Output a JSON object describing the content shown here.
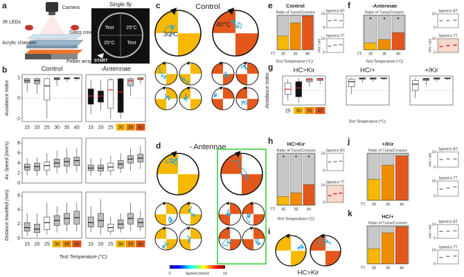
{
  "panel_a": {
    "letter": "a",
    "title": "Single fly",
    "parts": [
      "Camera",
      "IR LEDs",
      "Glass cover",
      "Acrylic chamber",
      "Peltier array"
    ],
    "arena": [
      "Test",
      "25°C",
      "25°C",
      "Test",
      "START"
    ]
  },
  "panel_b": {
    "letter": "b",
    "xlabel": "Test Temperature (°C)"
  },
  "panel_c": {
    "letter": "c",
    "title": "Control",
    "temps": [
      "30°C",
      "40°C"
    ]
  },
  "panel_d": {
    "letter": "d",
    "title": "- Antennae"
  },
  "colorbar": {
    "label": "Speed (mm/s)",
    "ticks": [
      0,
      10
    ]
  },
  "panel_e": {
    "letter": "e",
    "xlabel": "Test Temperature (°C)"
  },
  "panel_f": {
    "letter": "f",
    "xlabel": "Test Temperature (°C)"
  },
  "panel_g": {
    "letter": "g",
    "xlabel": "Test Temperature (°C)"
  },
  "panel_h": {
    "letter": "h",
    "xlabel": "Test Temperature (°C)"
  },
  "panel_i": {
    "letter": "i",
    "label": "HC>Kir"
  },
  "panel_j": {
    "letter": "j"
  },
  "panel_k": {
    "letter": "k"
  },
  "chart_data": [
    {
      "type": "box",
      "title": "Control",
      "ylabel": "Avoidance Index",
      "categories": [
        "15",
        "20",
        "25",
        "30",
        "35",
        "40"
      ],
      "ylim": [
        -1.15,
        1.15
      ],
      "yticks": [
        -1,
        0,
        1
      ],
      "zero_line": true,
      "median": [
        0.85,
        0.85,
        0.6,
        0.95,
        0.97,
        0.98
      ],
      "q1": [
        0.75,
        0.7,
        -0.1,
        0.9,
        0.93,
        0.95
      ],
      "q3": [
        0.95,
        0.95,
        0.95,
        1,
        1,
        1
      ],
      "whislo": [
        0.3,
        0.2,
        -1,
        0.6,
        0.8,
        0.85
      ],
      "whishi": [
        1,
        1,
        1,
        1,
        1,
        1
      ],
      "box_colors": [
        "#bdbdbd",
        "#bdbdbd",
        "#ffffff",
        "#bdbdbd",
        "#bdbdbd",
        "#bdbdbd"
      ],
      "median_color": "#222222"
    },
    {
      "type": "box",
      "title": "-Antennae",
      "categories": [
        "15",
        "20",
        "25",
        "30",
        "35",
        "40"
      ],
      "category_colors": [
        "none",
        "none",
        "none",
        "#f6b800",
        "#f08c00",
        "#e4571b"
      ],
      "ylim": [
        -1.15,
        1.15
      ],
      "zero_line": true,
      "median": [
        0.1,
        0.1,
        0.4,
        0.3,
        0.85,
        0.95
      ],
      "q1": [
        -0.3,
        -0.2,
        -0.5,
        -0.7,
        0.6,
        0.9
      ],
      "q3": [
        0.45,
        0.35,
        0.9,
        0.95,
        0.95,
        1
      ],
      "whislo": [
        -0.8,
        -0.6,
        -1,
        -1,
        0.1,
        0.7
      ],
      "whishi": [
        0.9,
        0.9,
        1,
        1,
        1,
        1
      ],
      "box_colors": [
        "#111111",
        "#111111",
        "#ffffff",
        "#111111",
        "#bdbdbd",
        "#bdbdbd"
      ],
      "median_color": "#e0201b"
    },
    {
      "type": "box",
      "ylabel": "Av. Speed (mm/s)",
      "ylim": [
        0,
        9
      ],
      "yticks": [
        0,
        2,
        4,
        6,
        8
      ],
      "median": [
        3.2,
        3.3,
        3.5,
        4,
        4.3,
        4.5
      ],
      "q1": [
        2.6,
        2.5,
        2.6,
        3.2,
        3.4,
        3.5
      ],
      "q3": [
        3.8,
        4,
        4.2,
        4.8,
        5,
        5.2
      ],
      "whislo": [
        1.5,
        1.4,
        1.5,
        2,
        2,
        2.2
      ],
      "whishi": [
        5,
        5.2,
        6,
        6.5,
        7,
        7
      ],
      "box_colors": [
        "#bdbdbd",
        "#bdbdbd",
        "#ffffff",
        "#bdbdbd",
        "#bdbdbd",
        "#bdbdbd"
      ],
      "median_color": "#222222"
    },
    {
      "type": "box",
      "ylim": [
        0,
        9
      ],
      "median": [
        3,
        3,
        3.2,
        3.8,
        4.8,
        5
      ],
      "q1": [
        2.5,
        2.4,
        2.5,
        3,
        4,
        4.2
      ],
      "q3": [
        3.6,
        3.6,
        4,
        4.5,
        5.5,
        5.8
      ],
      "whislo": [
        1.5,
        1.4,
        1.5,
        2,
        2.5,
        2.8
      ],
      "whishi": [
        5,
        5,
        5.5,
        6,
        7,
        7.5
      ],
      "box_colors": [
        "#bdbdbd",
        "#bdbdbd",
        "#ffffff",
        "#bdbdbd",
        "#bdbdbd",
        "#bdbdbd"
      ],
      "median_color": "#222222"
    },
    {
      "type": "box",
      "ylabel": "Distance travelled (mm)",
      "categories": [
        "15",
        "20",
        "25",
        "30",
        "35",
        "40"
      ],
      "category_colors": [
        "none",
        "none",
        "none",
        "#f6b800",
        "#f08c00",
        "#e4571b"
      ],
      "ylim": [
        0,
        6.5
      ],
      "yticks": [
        0,
        2,
        4,
        6
      ],
      "median": [
        1.5,
        1.3,
        2.2,
        2.5,
        2.8,
        2.9
      ],
      "q1": [
        1,
        0.8,
        1.2,
        1.8,
        2,
        2
      ],
      "q3": [
        2.2,
        2,
        3,
        3.2,
        3.5,
        3.8
      ],
      "whislo": [
        0.3,
        0.2,
        0.5,
        0.8,
        1,
        1
      ],
      "whishi": [
        3.5,
        3.5,
        5,
        4.5,
        5,
        5
      ],
      "box_colors": [
        "#bdbdbd",
        "#bdbdbd",
        "#ffffff",
        "#bdbdbd",
        "#bdbdbd",
        "#bdbdbd"
      ],
      "median_color": "#222222"
    },
    {
      "type": "box",
      "categories": [
        "15",
        "20",
        "25",
        "30",
        "35",
        "40"
      ],
      "category_colors": [
        "none",
        "none",
        "none",
        "#f6b800",
        "#f08c00",
        "#e4571b"
      ],
      "ylim": [
        0,
        6.5
      ],
      "median": [
        2.2,
        2.5,
        1.5,
        2,
        2.8,
        2.2
      ],
      "q1": [
        1.6,
        1.6,
        1,
        1.4,
        2,
        1.6
      ],
      "q3": [
        3,
        3.5,
        2,
        2.6,
        3.5,
        2.8
      ],
      "whislo": [
        0.8,
        0.5,
        0.5,
        0.8,
        1,
        1
      ],
      "whishi": [
        4.5,
        5.5,
        3,
        3.5,
        5,
        4
      ],
      "box_colors": [
        "#bdbdbd",
        "#bdbdbd",
        "#ffffff",
        "#bdbdbd",
        "#bdbdbd",
        "#bdbdbd"
      ],
      "median_color": "#222222"
    },
    {
      "type": "stacked_bar",
      "title": "Control",
      "subtitle": "Ratio of Turns/Crosses",
      "xprefix": "TT:",
      "categories": [
        "30",
        "35",
        "40"
      ],
      "ylim": [
        0,
        1
      ],
      "series": [
        {
          "colors": [
            "#f6b800",
            "#f08c00",
            "#e4571b"
          ],
          "values": [
            0.4,
            0.78,
            0.98
          ]
        },
        {
          "color": "#c8c8c8",
          "values": [
            0.6,
            0.22,
            0.02
          ]
        }
      ]
    },
    {
      "type": "dot",
      "title": "Speed in BT",
      "ylim": [
        0,
        14
      ],
      "yticks": [
        0,
        14
      ],
      "color": "#888888",
      "background": "#ffffff",
      "values": [
        7,
        7.5,
        7.2
      ]
    },
    {
      "type": "dot",
      "title": "Speed in TT",
      "ylabel": "mm / sec",
      "ylim": [
        0,
        14
      ],
      "yticks": [
        0,
        14
      ],
      "color": "#888888",
      "background": "#ffffff",
      "values": [
        6.5,
        7.5,
        8
      ]
    },
    {
      "type": "stacked_bar",
      "title": "-Antennae",
      "subtitle": "Ratio of Turns/Crosses",
      "xprefix": "TT:",
      "categories": [
        "30",
        "35",
        "40"
      ],
      "ylim": [
        0,
        1
      ],
      "significance": [
        "*",
        "*",
        "*"
      ],
      "series": [
        {
          "colors": [
            "#f6b800",
            "#f08c00",
            "#e4571b"
          ],
          "values": [
            0.2,
            0.3,
            0.5
          ]
        },
        {
          "color": "#c8c8c8",
          "values": [
            0.8,
            0.7,
            0.5
          ]
        }
      ]
    },
    {
      "type": "dot",
      "title": "Speed in BT",
      "ylim": [
        0,
        14
      ],
      "yticks": [
        0,
        14
      ],
      "color": "#888888",
      "background": "#ffffff",
      "values": [
        7,
        7.2,
        7.5
      ]
    },
    {
      "type": "dot",
      "title": "Speed in TT",
      "ylabel": "mm / sec",
      "ylim": [
        0,
        14
      ],
      "yticks": [
        0,
        14
      ],
      "color": "#d9302a",
      "background": "#f9d8cc",
      "values": [
        6,
        7,
        7.5
      ]
    },
    {
      "type": "box",
      "title": "HC>Kir",
      "ylabel": "Avoidance Index",
      "categories": [
        "25",
        "30",
        "35",
        "40"
      ],
      "category_colors": [
        "none",
        "#f6b800",
        "#f08c00",
        "#e4571b"
      ],
      "ylim": [
        -1.15,
        1.15
      ],
      "zero_line": true,
      "median": [
        0.1,
        0.2,
        0.85,
        0.9
      ],
      "q1": [
        -0.3,
        -0.5,
        0.7,
        0.8
      ],
      "q3": [
        0.6,
        0.7,
        0.95,
        0.97
      ],
      "whislo": [
        -0.8,
        -1,
        0.3,
        0.5
      ],
      "whishi": [
        0.9,
        1,
        1,
        1
      ],
      "box_colors": [
        "#ffffff",
        "#111111",
        "#bdbdbd",
        "#bdbdbd"
      ],
      "median_color": "#e0201b"
    },
    {
      "type": "box",
      "title": "HC/+",
      "ylim": [
        -1.15,
        1.15
      ],
      "zero_line": true,
      "median": [
        0.7,
        0.95,
        0.95,
        0.97
      ],
      "q1": [
        0.3,
        0.9,
        0.9,
        0.93
      ],
      "q3": [
        0.9,
        1,
        1,
        1
      ],
      "whislo": [
        -0.3,
        0.6,
        0.7,
        0.8
      ],
      "whishi": [
        1,
        1,
        1,
        1
      ],
      "box_colors": [
        "#ffffff",
        "#bdbdbd",
        "#bdbdbd",
        "#bdbdbd"
      ],
      "median_color": "#222222"
    },
    {
      "type": "box",
      "title": "+/Kir",
      "ylim": [
        -1.15,
        1.15
      ],
      "zero_line": true,
      "median": [
        0.5,
        0.9,
        0.95,
        0.97
      ],
      "q1": [
        0,
        0.8,
        0.9,
        0.93
      ],
      "q3": [
        0.8,
        0.97,
        1,
        1
      ],
      "whislo": [
        -0.6,
        0.4,
        0.7,
        0.8
      ],
      "whishi": [
        1,
        1,
        1,
        1
      ],
      "box_colors": [
        "#ffffff",
        "#bdbdbd",
        "#bdbdbd",
        "#bdbdbd"
      ],
      "median_color": "#222222"
    },
    {
      "type": "stacked_bar",
      "title": "HC>Kir",
      "subtitle": "Ratio of Turns/Crosses",
      "xprefix": "TT:",
      "categories": [
        "30",
        "35",
        "40"
      ],
      "ylim": [
        0,
        1
      ],
      "significance": [
        "*",
        "*",
        "*"
      ],
      "series": [
        {
          "colors": [
            "#f6b800",
            "#f08c00",
            "#e4571b"
          ],
          "values": [
            0.17,
            0.24,
            0.4
          ]
        },
        {
          "color": "#c8c8c8",
          "values": [
            0.83,
            0.76,
            0.6
          ]
        }
      ]
    },
    {
      "type": "dot",
      "title": "Speed in BT",
      "ylim": [
        0,
        14
      ],
      "yticks": [
        0,
        14
      ],
      "color": "#888888",
      "background": "#ffffff",
      "values": [
        7,
        7.3,
        7.6
      ]
    },
    {
      "type": "dot",
      "title": "Speed in TT",
      "ylim": [
        0,
        14
      ],
      "yticks": [
        0,
        14
      ],
      "color": "#d9302a",
      "background": "#f9d8cc",
      "values": [
        5.5,
        7,
        7.5
      ]
    },
    {
      "type": "stacked_bar",
      "title": "+/Kir",
      "subtitle": "Ratio of Turns/Crosses",
      "xprefix": "TT:",
      "categories": [
        "30",
        "35",
        "40"
      ],
      "ylim": [
        0,
        1
      ],
      "series": [
        {
          "colors": [
            "#f6b800",
            "#f08c00",
            "#e4571b"
          ],
          "values": [
            0.45,
            0.75,
            0.95
          ]
        },
        {
          "color": "#c8c8c8",
          "values": [
            0.55,
            0.25,
            0.05
          ]
        }
      ]
    },
    {
      "type": "dot",
      "title": "Speed in BT",
      "ylabel": "mm / sec",
      "ylim": [
        0,
        14
      ],
      "yticks": [
        0,
        14
      ],
      "color": "#888888",
      "background": "#ffffff",
      "values": [
        7,
        7.5,
        7.5
      ]
    },
    {
      "type": "dot",
      "title": "Speed in TT",
      "ylim": [
        0,
        14
      ],
      "yticks": [
        0,
        14
      ],
      "color": "#888888",
      "background": "#ffffff",
      "values": [
        6.5,
        7.5,
        8.5
      ]
    },
    {
      "type": "stacked_bar",
      "title": "HC/+",
      "subtitle": "Ratio of Turns/Crosses",
      "xprefix": "TT:",
      "categories": [
        "30",
        "35",
        "40"
      ],
      "ylim": [
        0,
        1
      ],
      "series": [
        {
          "colors": [
            "#f6b800",
            "#f08c00",
            "#e4571b"
          ],
          "values": [
            0.4,
            0.82,
            0.98
          ]
        },
        {
          "color": "#c8c8c8",
          "values": [
            0.6,
            0.18,
            0.02
          ]
        }
      ]
    },
    {
      "type": "dot",
      "title": "Speed in BT",
      "ylabel": "mm / sec",
      "ylim": [
        0,
        14
      ],
      "yticks": [
        0,
        14
      ],
      "color": "#888888",
      "background": "#ffffff",
      "values": [
        7,
        7.2,
        7.6
      ]
    },
    {
      "type": "dot",
      "title": "Speed in TT",
      "ylim": [
        0,
        14
      ],
      "yticks": [
        0,
        14
      ],
      "color": "#888888",
      "background": "#ffffff",
      "values": [
        6.5,
        7.5,
        8
      ]
    }
  ]
}
